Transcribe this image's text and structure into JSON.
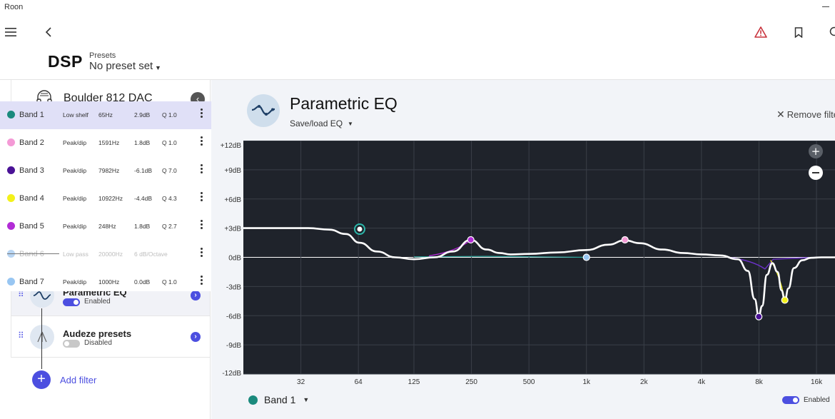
{
  "window": {
    "app_name": "Roon"
  },
  "header": {
    "title": "DSP",
    "presets_label": "Presets",
    "presets_value": "No preset set"
  },
  "sidebar": {
    "device_name": "Boulder 812 DAC",
    "filters": [
      {
        "name": "Parametric EQ",
        "state": "Enabled",
        "enabled": true
      },
      {
        "name": "Audeze presets",
        "state": "Disabled",
        "enabled": false
      }
    ],
    "add_filter_label": "Add filter"
  },
  "bands": [
    {
      "name": "Band 1",
      "type": "Low shelf",
      "freq": "65Hz",
      "gain": "2.9dB",
      "q": "Q 1.0",
      "color": "#1a8a7d",
      "selected": true,
      "disabled": false
    },
    {
      "name": "Band 2",
      "type": "Peak/dip",
      "freq": "1591Hz",
      "gain": "1.8dB",
      "q": "Q 1.0",
      "color": "#f49ad6",
      "selected": false,
      "disabled": false
    },
    {
      "name": "Band 3",
      "type": "Peak/dip",
      "freq": "7982Hz",
      "gain": "-6.1dB",
      "q": "Q 7.0",
      "color": "#4a1296",
      "selected": false,
      "disabled": false
    },
    {
      "name": "Band 4",
      "type": "Peak/dip",
      "freq": "10922Hz",
      "gain": "-4.4dB",
      "q": "Q 4.3",
      "color": "#f3f11a",
      "selected": false,
      "disabled": false
    },
    {
      "name": "Band 5",
      "type": "Peak/dip",
      "freq": "248Hz",
      "gain": "1.8dB",
      "q": "Q 2.7",
      "color": "#b22cd6",
      "selected": false,
      "disabled": false
    },
    {
      "name": "Band 6",
      "type": "Low pass",
      "freq": "20000Hz",
      "gain": "6 dB/Octave",
      "q": "",
      "color": "#b8d5f3",
      "selected": false,
      "disabled": true
    },
    {
      "name": "Band 7",
      "type": "Peak/dip",
      "freq": "1000Hz",
      "gain": "0.0dB",
      "q": "Q 1.0",
      "color": "#98c6f2",
      "selected": false,
      "disabled": false
    }
  ],
  "main": {
    "title": "Parametric EQ",
    "saveload_label": "Save/load EQ",
    "remove_label": "Remove filte",
    "selected_band": "Band 1",
    "selected_band_color": "#1a8a7d",
    "enabled_label": "Enabled"
  },
  "chart_data": {
    "type": "line",
    "xscale": "log",
    "x_ticks": [
      32,
      64,
      125,
      250,
      500,
      1000,
      2000,
      4000,
      8000,
      16000
    ],
    "x_tick_labels": [
      "32",
      "64",
      "125",
      "250",
      "500",
      "1k",
      "2k",
      "4k",
      "8k",
      "16k"
    ],
    "y_ticks": [
      12,
      9,
      6,
      3,
      0,
      -3,
      -6,
      -9,
      -12
    ],
    "y_tick_labels": [
      "+12dB",
      "+9dB",
      "+6dB",
      "+3dB",
      "0dB",
      "-3dB",
      "-6dB",
      "-9dB",
      "-12dB"
    ],
    "ylim": [
      -12,
      12
    ],
    "grid": true,
    "background": "#1f232b",
    "response_color": "#ffffff",
    "band_points": [
      {
        "band": "Band 1",
        "freq": 65,
        "gain": 2.9,
        "color": "#1a8a7d"
      },
      {
        "band": "Band 5",
        "freq": 248,
        "gain": 1.8,
        "color": "#b22cd6"
      },
      {
        "band": "Band 2",
        "freq": 1591,
        "gain": 1.8,
        "color": "#f49ad6"
      },
      {
        "band": "Band 7",
        "freq": 1000,
        "gain": 0.0,
        "color": "#98c6f2"
      },
      {
        "band": "Band 3",
        "freq": 7982,
        "gain": -6.1,
        "color": "#4a1296"
      },
      {
        "band": "Band 4",
        "freq": 10922,
        "gain": -4.4,
        "color": "#f3f11a"
      }
    ],
    "response_curve": [
      [
        16,
        3.0
      ],
      [
        25,
        3.0
      ],
      [
        35,
        3.0
      ],
      [
        45,
        2.85
      ],
      [
        55,
        2.4
      ],
      [
        65,
        1.5
      ],
      [
        80,
        0.6
      ],
      [
        100,
        0.0
      ],
      [
        125,
        -0.2
      ],
      [
        160,
        0.0
      ],
      [
        200,
        0.6
      ],
      [
        248,
        1.8
      ],
      [
        300,
        0.8
      ],
      [
        350,
        0.45
      ],
      [
        400,
        0.3
      ],
      [
        500,
        0.35
      ],
      [
        700,
        0.5
      ],
      [
        1000,
        0.75
      ],
      [
        1300,
        1.3
      ],
      [
        1591,
        1.75
      ],
      [
        1900,
        1.45
      ],
      [
        2500,
        0.8
      ],
      [
        3200,
        0.45
      ],
      [
        4000,
        0.3
      ],
      [
        5000,
        0.2
      ],
      [
        6200,
        -0.2
      ],
      [
        7000,
        -1.4
      ],
      [
        7600,
        -4.3
      ],
      [
        7982,
        -6.1
      ],
      [
        8300,
        -5.0
      ],
      [
        8800,
        -1.8
      ],
      [
        9400,
        -0.6
      ],
      [
        10000,
        -1.5
      ],
      [
        10500,
        -3.4
      ],
      [
        10922,
        -4.4
      ],
      [
        11400,
        -3.2
      ],
      [
        12200,
        -1.1
      ],
      [
        13500,
        -0.3
      ],
      [
        15000,
        -0.05
      ],
      [
        17000,
        0.0
      ],
      [
        20000,
        0.0
      ]
    ]
  }
}
